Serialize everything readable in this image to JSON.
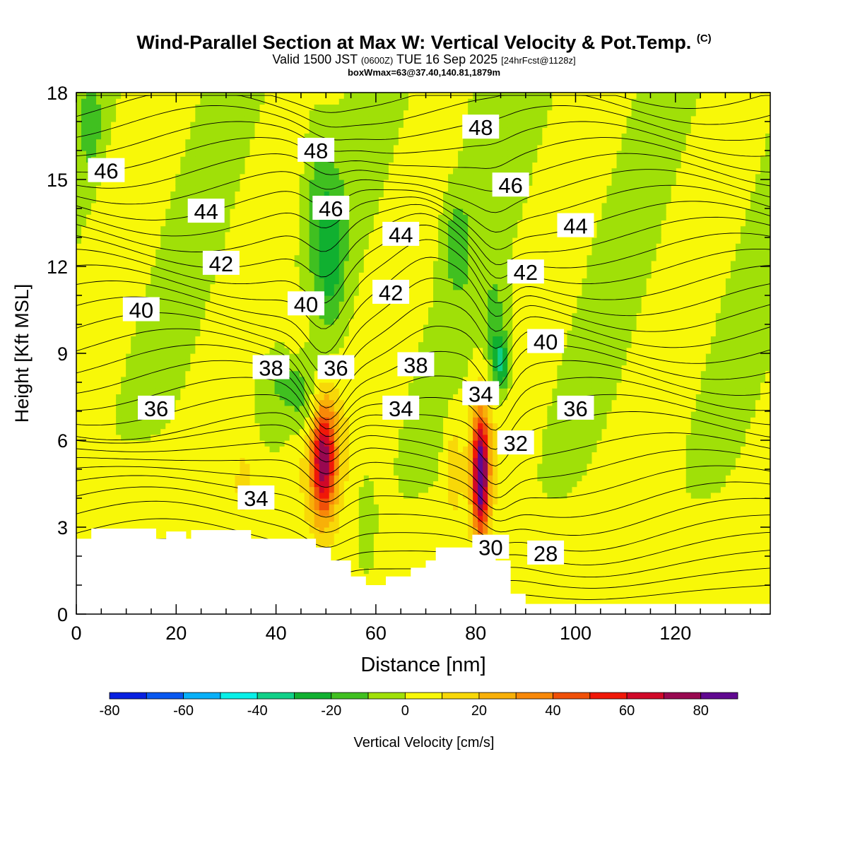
{
  "title": {
    "main": "Wind-Parallel Section at Max W: Vertical Velocity & Pot.Temp.",
    "copyright": "(C)",
    "valid_prefix": "Valid 1500 JST",
    "valid_z": "(0600Z)",
    "valid_date": "TUE 16 Sep 2025",
    "fcst": "[24hrFcst@1128z]",
    "boxwmax": "boxWmax=63@37.40,140.81,1879m"
  },
  "chart_data": {
    "type": "heatmap",
    "xlabel": "Distance [nm]",
    "ylabel": "Height [Kft MSL]",
    "xlim": [
      0,
      139
    ],
    "ylim": [
      0,
      18
    ],
    "x_ticks": [
      0,
      20,
      40,
      60,
      80,
      100,
      120
    ],
    "y_ticks": [
      0,
      3,
      6,
      9,
      12,
      15,
      18
    ],
    "colorbar": {
      "label": "Vertical Velocity [cm/s]",
      "ticks": [
        -80,
        -60,
        -40,
        -20,
        0,
        20,
        40,
        60,
        80
      ],
      "levels": [
        -80,
        -70,
        -60,
        -50,
        -40,
        -30,
        -20,
        -10,
        0,
        10,
        20,
        30,
        40,
        50,
        60,
        70,
        80,
        90
      ],
      "colors": [
        "#0820e0",
        "#0858f0",
        "#08b0f8",
        "#08f0e8",
        "#10d088",
        "#10b030",
        "#40c020",
        "#a0e008",
        "#f8f808",
        "#f8d808",
        "#f8b008",
        "#f88808",
        "#f05008",
        "#f01808",
        "#d00828",
        "#980850",
        "#600890"
      ]
    },
    "terrain_kft": [
      [
        0,
        2.6
      ],
      [
        3,
        2.6
      ],
      [
        3,
        2.95
      ],
      [
        16,
        2.95
      ],
      [
        16,
        2.6
      ],
      [
        18,
        2.6
      ],
      [
        18,
        2.85
      ],
      [
        22,
        2.85
      ],
      [
        22,
        2.6
      ],
      [
        23,
        2.6
      ],
      [
        23,
        2.9
      ],
      [
        35,
        2.9
      ],
      [
        35,
        2.6
      ],
      [
        48,
        2.6
      ],
      [
        48,
        2.3
      ],
      [
        51,
        2.3
      ],
      [
        51,
        1.85
      ],
      [
        55,
        1.85
      ],
      [
        55,
        1.3
      ],
      [
        58,
        1.3
      ],
      [
        58,
        1.0
      ],
      [
        62,
        1.0
      ],
      [
        62,
        1.3
      ],
      [
        67,
        1.3
      ],
      [
        67,
        1.6
      ],
      [
        70,
        1.6
      ],
      [
        70,
        1.85
      ],
      [
        72,
        1.85
      ],
      [
        72,
        2.3
      ],
      [
        80,
        2.3
      ],
      [
        80,
        2.25
      ],
      [
        84,
        2.25
      ],
      [
        84,
        1.85
      ],
      [
        87,
        1.85
      ],
      [
        87,
        0.7
      ],
      [
        90,
        0.7
      ],
      [
        90,
        0.35
      ],
      [
        139,
        0.35
      ]
    ],
    "theta_contour_labels": [
      {
        "value": "46",
        "x": 6,
        "y": 15.3
      },
      {
        "value": "44",
        "x": 26,
        "y": 13.9
      },
      {
        "value": "42",
        "x": 29,
        "y": 12.1
      },
      {
        "value": "40",
        "x": 13,
        "y": 10.5
      },
      {
        "value": "38",
        "x": 39,
        "y": 8.5
      },
      {
        "value": "36",
        "x": 16,
        "y": 7.1
      },
      {
        "value": "34",
        "x": 36,
        "y": 4.0
      },
      {
        "value": "48",
        "x": 48,
        "y": 16.0
      },
      {
        "value": "46",
        "x": 51,
        "y": 14.0
      },
      {
        "value": "40",
        "x": 46,
        "y": 10.7
      },
      {
        "value": "36",
        "x": 52,
        "y": 8.5
      },
      {
        "value": "44",
        "x": 65,
        "y": 13.1
      },
      {
        "value": "42",
        "x": 63,
        "y": 11.1
      },
      {
        "value": "38",
        "x": 68,
        "y": 8.6
      },
      {
        "value": "34",
        "x": 65,
        "y": 7.1
      },
      {
        "value": "48",
        "x": 81,
        "y": 16.8
      },
      {
        "value": "46",
        "x": 87,
        "y": 14.8
      },
      {
        "value": "44",
        "x": 100,
        "y": 13.4
      },
      {
        "value": "42",
        "x": 90,
        "y": 11.8
      },
      {
        "value": "40",
        "x": 94,
        "y": 9.4
      },
      {
        "value": "36",
        "x": 100,
        "y": 7.1
      },
      {
        "value": "34",
        "x": 81,
        "y": 7.6
      },
      {
        "value": "32",
        "x": 88,
        "y": 5.9
      },
      {
        "value": "30",
        "x": 83,
        "y": 2.3
      },
      {
        "value": "28",
        "x": 94,
        "y": 2.1
      }
    ]
  }
}
